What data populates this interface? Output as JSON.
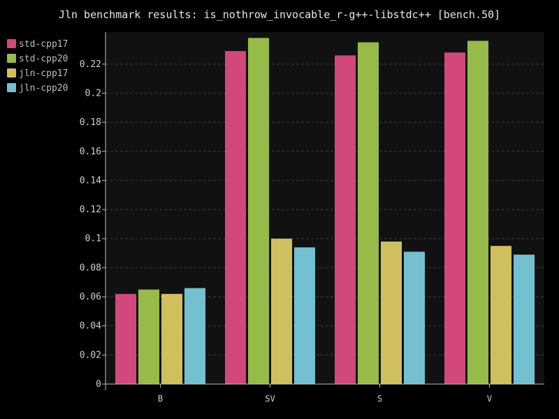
{
  "chart_data": {
    "type": "bar",
    "title": "Jln benchmark results: is_nothrow_invocable_r-g++-libstdc++ [bench.50]",
    "xlabel": "",
    "ylabel": "",
    "categories": [
      "B",
      "SV",
      "S",
      "V"
    ],
    "series": [
      {
        "name": "std-cpp17",
        "color": "#d2477c",
        "values": [
          0.062,
          0.229,
          0.226,
          0.228
        ]
      },
      {
        "name": "std-cpp20",
        "color": "#97bb48",
        "values": [
          0.065,
          0.238,
          0.235,
          0.236
        ]
      },
      {
        "name": "jln-cpp17",
        "color": "#cfc05d",
        "values": [
          0.062,
          0.1,
          0.098,
          0.095
        ]
      },
      {
        "name": "jln-cpp20",
        "color": "#73c1d0",
        "values": [
          0.066,
          0.094,
          0.091,
          0.089
        ]
      }
    ],
    "ylim": [
      0,
      0.242
    ],
    "yticks": [
      0,
      0.02,
      0.04,
      0.06,
      0.08,
      0.1,
      0.12,
      0.14,
      0.16,
      0.18,
      0.2,
      0.22
    ],
    "ytick_labels": [
      "0",
      "0.02",
      "0.04",
      "0.06",
      "0.08",
      "0.1",
      "0.12",
      "0.14",
      "0.16",
      "0.18",
      "0.2",
      "0.22"
    ],
    "grid": true,
    "legend_position": "top-left",
    "plot_background": "#111111",
    "page_background": "#000000"
  }
}
